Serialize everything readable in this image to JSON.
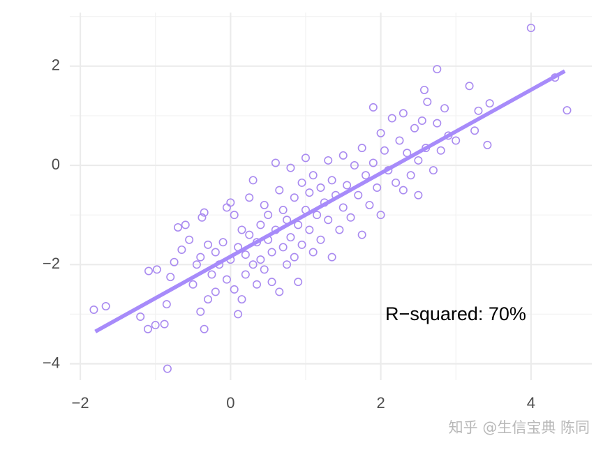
{
  "chart_data": {
    "type": "scatter",
    "annotation": "R−squared: 70%",
    "watermark": "知乎 @生信宝典 陈同",
    "point_color": "#a98af0",
    "line_color": "#a78bfa",
    "grid": true,
    "xlim": [
      -2.14,
      4.81
    ],
    "ylim": [
      -4.33,
      3.08
    ],
    "xticks": [
      {
        "value": -2,
        "label": "−2"
      },
      0,
      2,
      4
    ],
    "yticks": [
      {
        "value": -4,
        "label": "−4"
      },
      {
        "value": -2,
        "label": "−2"
      },
      0,
      2
    ],
    "minor_xticks": [
      -1,
      1,
      3
    ],
    "minor_yticks": [
      -3,
      -1,
      1,
      3
    ],
    "fit_line": {
      "x": [
        -1.8,
        4.45
      ],
      "y": [
        -3.35,
        1.9
      ]
    },
    "x": [
      -1.82,
      -1.66,
      -1.2,
      -1.1,
      -1.0,
      -0.88,
      -0.84,
      -1.09,
      -0.98,
      -0.85,
      -0.8,
      -0.75,
      -0.65,
      -0.7,
      -0.6,
      -0.55,
      -0.5,
      -0.45,
      -0.4,
      -0.4,
      -0.35,
      -0.3,
      -0.35,
      -0.38,
      -0.3,
      -0.25,
      -0.2,
      -0.2,
      -0.15,
      -0.1,
      -0.05,
      0.0,
      -0.05,
      0.0,
      0.05,
      0.05,
      0.1,
      0.1,
      0.15,
      0.15,
      0.2,
      0.2,
      0.25,
      0.25,
      0.3,
      0.3,
      0.35,
      0.35,
      0.4,
      0.4,
      0.45,
      0.45,
      0.5,
      0.5,
      0.55,
      0.55,
      0.6,
      0.6,
      0.65,
      0.65,
      0.7,
      0.7,
      0.75,
      0.75,
      0.8,
      0.8,
      0.85,
      0.85,
      0.9,
      0.9,
      0.95,
      0.95,
      1.0,
      1.0,
      1.05,
      1.05,
      1.1,
      1.1,
      1.15,
      1.2,
      1.2,
      1.25,
      1.3,
      1.3,
      1.35,
      1.35,
      1.4,
      1.45,
      1.5,
      1.5,
      1.55,
      1.6,
      1.65,
      1.7,
      1.75,
      1.75,
      1.8,
      1.85,
      1.9,
      1.9,
      1.95,
      2.0,
      2.0,
      2.05,
      2.1,
      2.15,
      2.2,
      2.25,
      2.3,
      2.3,
      2.35,
      2.4,
      2.45,
      2.5,
      2.5,
      2.55,
      2.6,
      2.62,
      2.58,
      2.7,
      2.75,
      2.75,
      2.8,
      2.85,
      2.9,
      3.0,
      3.18,
      3.25,
      3.3,
      3.42,
      3.45,
      4.0,
      4.32,
      4.48
    ],
    "y": [
      -2.91,
      -2.84,
      -3.05,
      -3.3,
      -3.22,
      -3.2,
      -4.1,
      -2.13,
      -2.1,
      -2.8,
      -2.25,
      -1.95,
      -1.7,
      -1.25,
      -1.2,
      -1.5,
      -2.4,
      -2.0,
      -1.85,
      -2.95,
      -3.3,
      -2.7,
      -0.95,
      -1.05,
      -1.6,
      -2.2,
      -2.55,
      -1.75,
      -2.0,
      -1.55,
      -2.3,
      -1.9,
      -0.85,
      -0.75,
      -1.0,
      -2.5,
      -1.65,
      -3.0,
      -1.3,
      -2.7,
      -1.8,
      -2.2,
      -1.4,
      -0.65,
      -2.0,
      -0.3,
      -1.55,
      -2.4,
      -1.2,
      -1.9,
      -0.8,
      -2.1,
      -1.5,
      -1.0,
      -1.75,
      -2.35,
      0.05,
      -1.3,
      -0.5,
      -2.55,
      -1.65,
      -0.9,
      -1.1,
      -2.0,
      -0.05,
      -1.45,
      -0.65,
      -1.85,
      -1.2,
      -2.35,
      -0.35,
      -1.6,
      0.15,
      -0.9,
      -1.3,
      -0.55,
      -1.75,
      -0.2,
      -1.0,
      -0.45,
      -1.5,
      -0.75,
      0.1,
      -1.1,
      -0.3,
      -1.85,
      -0.6,
      -1.3,
      0.2,
      -0.85,
      -0.4,
      -1.05,
      0.0,
      -0.6,
      -1.4,
      0.35,
      -0.2,
      -0.8,
      0.05,
      1.17,
      -0.45,
      0.65,
      -1.0,
      0.3,
      -0.1,
      0.95,
      -0.35,
      0.5,
      1.05,
      -0.5,
      0.25,
      -0.2,
      0.75,
      0.1,
      -0.6,
      0.9,
      0.35,
      1.28,
      1.52,
      -0.1,
      1.94,
      0.85,
      0.3,
      1.15,
      0.6,
      0.5,
      1.6,
      0.7,
      1.1,
      0.41,
      1.25,
      2.77,
      1.77,
      1.11
    ]
  }
}
